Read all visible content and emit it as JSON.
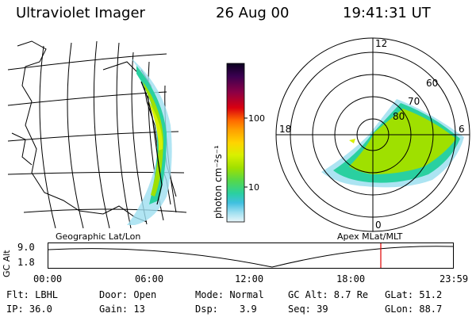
{
  "header": {
    "title": "Ultraviolet Imager",
    "date": "26 Aug 00",
    "time": "19:41:31 UT"
  },
  "maps": {
    "left_label": "Geographic Lat/Lon",
    "right_label": "Apex MLat/MLT",
    "polar_labels": {
      "top": "12",
      "left": "18",
      "right": "6",
      "bottom": "0",
      "lat60": "60",
      "lat70": "70",
      "lat80": "80"
    }
  },
  "colorbar": {
    "unit_label": "photon cm⁻²s⁻¹",
    "ticks": [
      "100",
      "10"
    ],
    "colors": [
      "#0b0020",
      "#3a0050",
      "#8a0046",
      "#d90010",
      "#ff6a00",
      "#ffa000",
      "#ffd400",
      "#d8f000",
      "#9fe000",
      "#55d84a",
      "#2ad0a0",
      "#40c0e0",
      "#9edff0",
      "#e9f6fa"
    ]
  },
  "timeline": {
    "ylabel": "GC Alt",
    "yticks": [
      "9.0",
      "1.8"
    ],
    "xticks": [
      "00:00",
      "06:00",
      "12:00",
      "18:00",
      "23:59"
    ],
    "marker_color": "#e00000"
  },
  "info": {
    "row1": {
      "flt": "Flt: LBHL",
      "door": "Door: Open",
      "mode": "Mode: Normal",
      "gcalt": "GC Alt: 8.7 Re",
      "glat": "GLat: 51.2"
    },
    "row2": {
      "ip": "IP: 36.0",
      "gain": "Gain: 13",
      "dsp_label": "Dsp:",
      "dsp_value": "3.9",
      "seq": "Seq: 39",
      "glon": "GLon: 88.7"
    }
  }
}
